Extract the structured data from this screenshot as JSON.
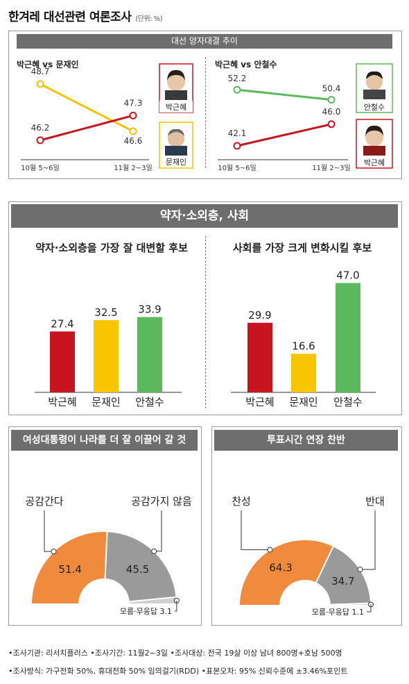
{
  "page": {
    "title": "한겨레 대선관련 여론조사",
    "unit": "(단위: %)"
  },
  "trend": {
    "header": "대선 양자대결 추이",
    "left": {
      "subtitle": "박근혜 vs 문재인"
    },
    "right": {
      "subtitle": "박근혜 vs 안철수"
    }
  },
  "section2": {
    "header": "약자·소외층, 사회",
    "left_title": "약자·소외층을 가장 잘 대변할 후보",
    "right_title": "사회를 가장 크게 변화시킬 후보"
  },
  "section3": {
    "left_header": "여성대통령이 나라를 더 잘 이끌어 갈 것",
    "right_header": "투표시간 연장 찬반"
  },
  "footer": {
    "line1": "•조사기관: 리서치플러스  •조사기간: 11월2~3일  •조사대상: 전국 19살 이상 남녀 800명+호남 500명",
    "line2": "•조사방식: 가구전화 50%, 휴대전화 50% 임의걸기(RDD) •표본오차: 95% 신뢰수준에 ±3.46%포인트"
  },
  "colors": {
    "park": "#c8141e",
    "moon": "#f7c600",
    "ahn": "#5cb85c",
    "orange": "#f08a3c",
    "gray": "#9a9a9a",
    "header_gray": "#6e6e6e"
  },
  "chart_data": [
    {
      "type": "line",
      "title": "박근혜 vs 문재인",
      "x": [
        "10월 5~6일",
        "11월 2~3일"
      ],
      "series": [
        {
          "name": "박근혜",
          "values": [
            46.2,
            47.3
          ],
          "color": "#c8141e"
        },
        {
          "name": "문재인",
          "values": [
            48.7,
            46.6
          ],
          "color": "#f7c600"
        }
      ]
    },
    {
      "type": "line",
      "title": "박근혜 vs 안철수",
      "x": [
        "10월 5~6일",
        "11월 2~3일"
      ],
      "series": [
        {
          "name": "안철수",
          "values": [
            52.2,
            50.4
          ],
          "color": "#5cb85c"
        },
        {
          "name": "박근혜",
          "values": [
            42.1,
            46.0
          ],
          "value_labels": [
            "42.1",
            "46.0"
          ],
          "color": "#c8141e"
        }
      ]
    },
    {
      "type": "bar",
      "title": "약자·소외층을 가장 잘 대변할 후보",
      "categories": [
        "박근혜",
        "문재인",
        "안철수"
      ],
      "values": [
        27.4,
        32.5,
        33.9
      ],
      "colors": [
        "#c8141e",
        "#f7c600",
        "#5cb85c"
      ]
    },
    {
      "type": "bar",
      "title": "사회를 가장 크게 변화시킬 후보",
      "categories": [
        "박근혜",
        "문재인",
        "안철수"
      ],
      "values": [
        29.9,
        16.6,
        47.0
      ],
      "value_labels": [
        "29.9",
        "16.6",
        "47.0"
      ],
      "colors": [
        "#c8141e",
        "#f7c600",
        "#5cb85c"
      ]
    },
    {
      "type": "pie",
      "title": "여성대통령이 나라를 더 잘 이끌어 갈 것",
      "categories": [
        "공감간다",
        "공감가지 않음",
        "모름·무응답"
      ],
      "values": [
        51.4,
        45.5,
        3.1
      ],
      "colors": [
        "#f08a3c",
        "#9a9a9a",
        "#cfcfcf"
      ]
    },
    {
      "type": "pie",
      "title": "투표시간 연장 찬반",
      "categories": [
        "찬성",
        "반대",
        "모름·무응답"
      ],
      "values": [
        64.3,
        34.7,
        1.1
      ],
      "colors": [
        "#f08a3c",
        "#9a9a9a",
        "#cfcfcf"
      ]
    }
  ]
}
